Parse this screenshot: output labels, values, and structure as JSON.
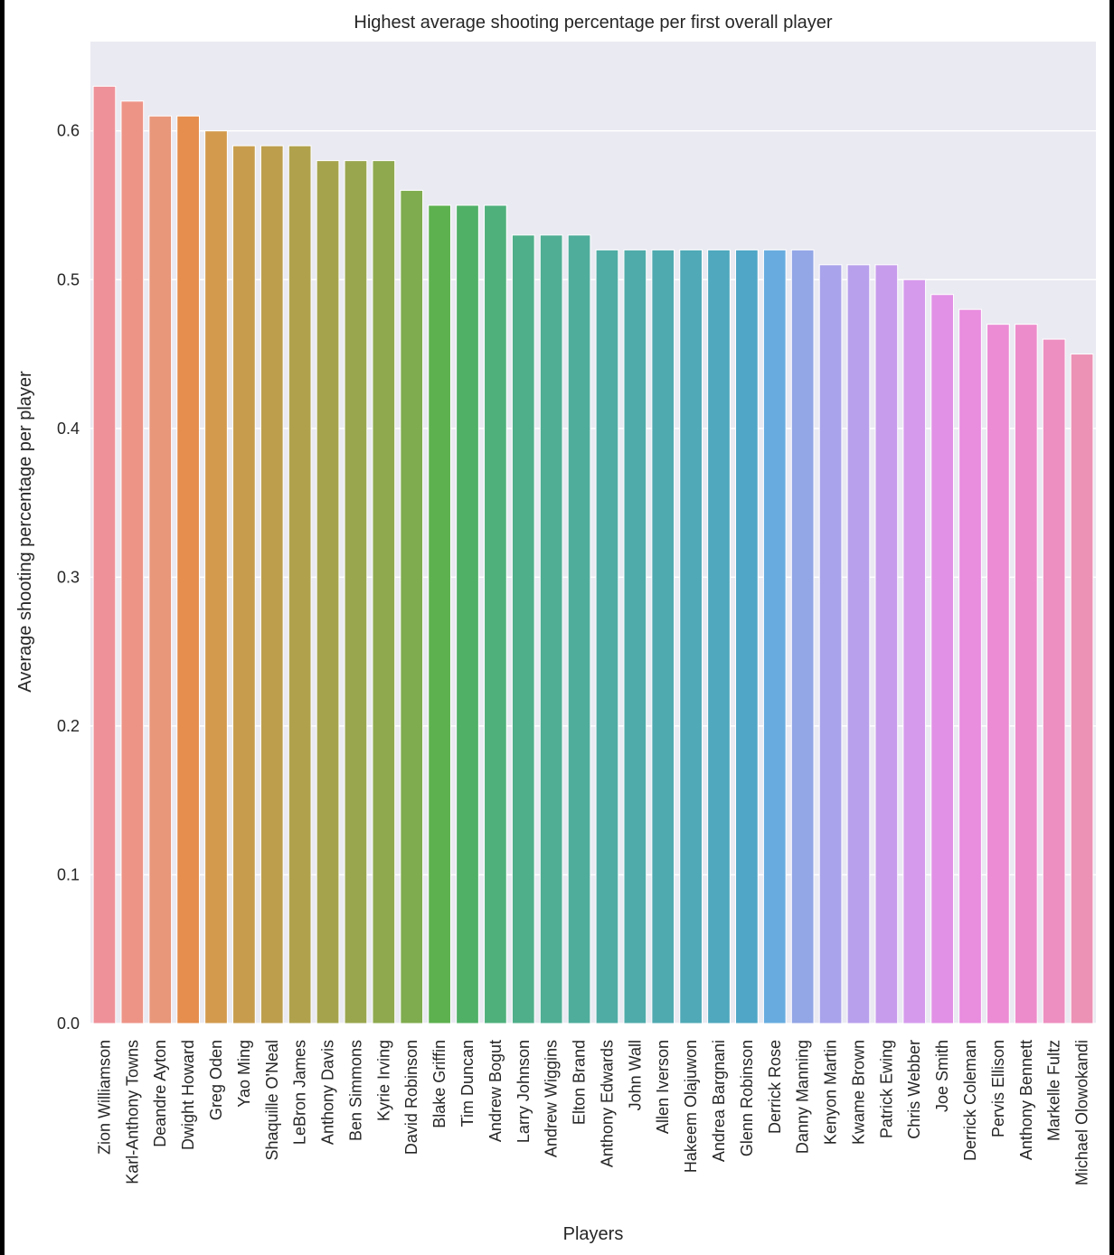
{
  "chart_data": {
    "type": "bar",
    "title": "Highest average shooting percentage per first overall player",
    "xlabel": "Players",
    "ylabel": "Average shooting percentage per player",
    "ylim": [
      0,
      0.66
    ],
    "yticks": [
      "0.0",
      "0.1",
      "0.2",
      "0.3",
      "0.4",
      "0.5",
      "0.6"
    ],
    "grid": true,
    "categories": [
      "Zion Williamson",
      "Karl-Anthony Towns",
      "Deandre Ayton",
      "Dwight Howard",
      "Greg Oden",
      "Yao Ming",
      "Shaquille O'Neal",
      "LeBron James",
      "Anthony Davis",
      "Ben Simmons",
      "Kyrie Irving",
      "David Robinson",
      "Blake Griffin",
      "Tim Duncan",
      "Andrew Bogut",
      "Larry Johnson",
      "Andrew Wiggins",
      "Elton Brand",
      "Anthony Edwards",
      "John Wall",
      "Allen Iverson",
      "Hakeem Olajuwon",
      "Andrea Bargnani",
      "Glenn Robinson",
      "Derrick Rose",
      "Danny Manning",
      "Kenyon Martin",
      "Kwame Brown",
      "Patrick Ewing",
      "Chris Webber",
      "Joe Smith",
      "Derrick Coleman",
      "Pervis Ellison",
      "Anthony Bennett",
      "Markelle Fultz",
      "Michael Olowokandi"
    ],
    "values": [
      0.63,
      0.62,
      0.61,
      0.61,
      0.6,
      0.59,
      0.59,
      0.59,
      0.58,
      0.58,
      0.58,
      0.56,
      0.55,
      0.55,
      0.55,
      0.53,
      0.53,
      0.53,
      0.52,
      0.52,
      0.52,
      0.52,
      0.52,
      0.52,
      0.52,
      0.52,
      0.51,
      0.51,
      0.51,
      0.5,
      0.49,
      0.48,
      0.47,
      0.47,
      0.46,
      0.45
    ],
    "colors": [
      "#ef9199",
      "#ed9487",
      "#e8977b",
      "#e58e4d",
      "#d39a4d",
      "#c79d4d",
      "#bc9e4d",
      "#b0a24d",
      "#a5a44d",
      "#9aa64e",
      "#8ea94e",
      "#7fac4e",
      "#5db14e",
      "#4fb066",
      "#4fb07c",
      "#4faf8a",
      "#4fae94",
      "#4fad9c",
      "#4faca4",
      "#4faba9",
      "#4faab0",
      "#4fa9b6",
      "#4fa8bd",
      "#4fa6c6",
      "#68acdf",
      "#93a6e6",
      "#a9a3eb",
      "#b9a0ec",
      "#c89cec",
      "#d59aec",
      "#e191e6",
      "#e98ddf",
      "#ec8cd5",
      "#ed8ccb",
      "#ed8fc0",
      "#ec92b5"
    ]
  }
}
